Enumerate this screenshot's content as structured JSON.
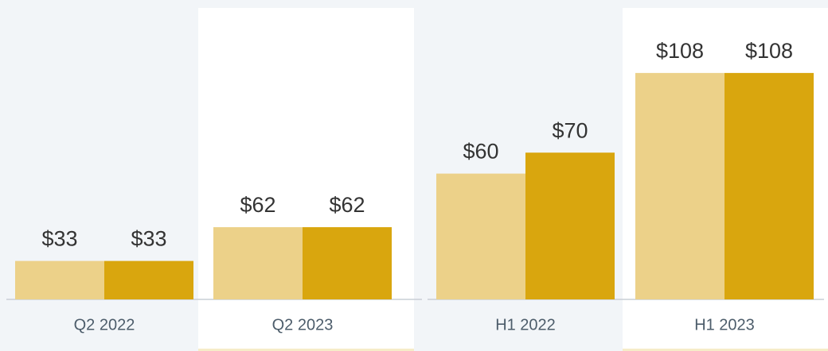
{
  "chart_data": [
    {
      "type": "bar",
      "categories": [
        "Q2 2022",
        "Q2 2023"
      ],
      "ylim": [
        0,
        225
      ],
      "series": [
        {
          "color": "#ecd189",
          "values": [
            33,
            62
          ],
          "value_labels": [
            "$33",
            "$62"
          ]
        },
        {
          "color": "#d9a60e",
          "values": [
            33,
            62
          ],
          "value_labels": [
            "$33",
            "$62"
          ]
        }
      ]
    },
    {
      "type": "bar",
      "categories": [
        "H1 2022",
        "H1 2023"
      ],
      "ylim": [
        0,
        125
      ],
      "series": [
        {
          "color": "#ecd189",
          "values": [
            60,
            108
          ],
          "value_labels": [
            "$60",
            "$108"
          ]
        },
        {
          "color": "#d9a60e",
          "values": [
            70,
            108
          ],
          "value_labels": [
            "$70",
            "$108"
          ]
        }
      ]
    }
  ]
}
